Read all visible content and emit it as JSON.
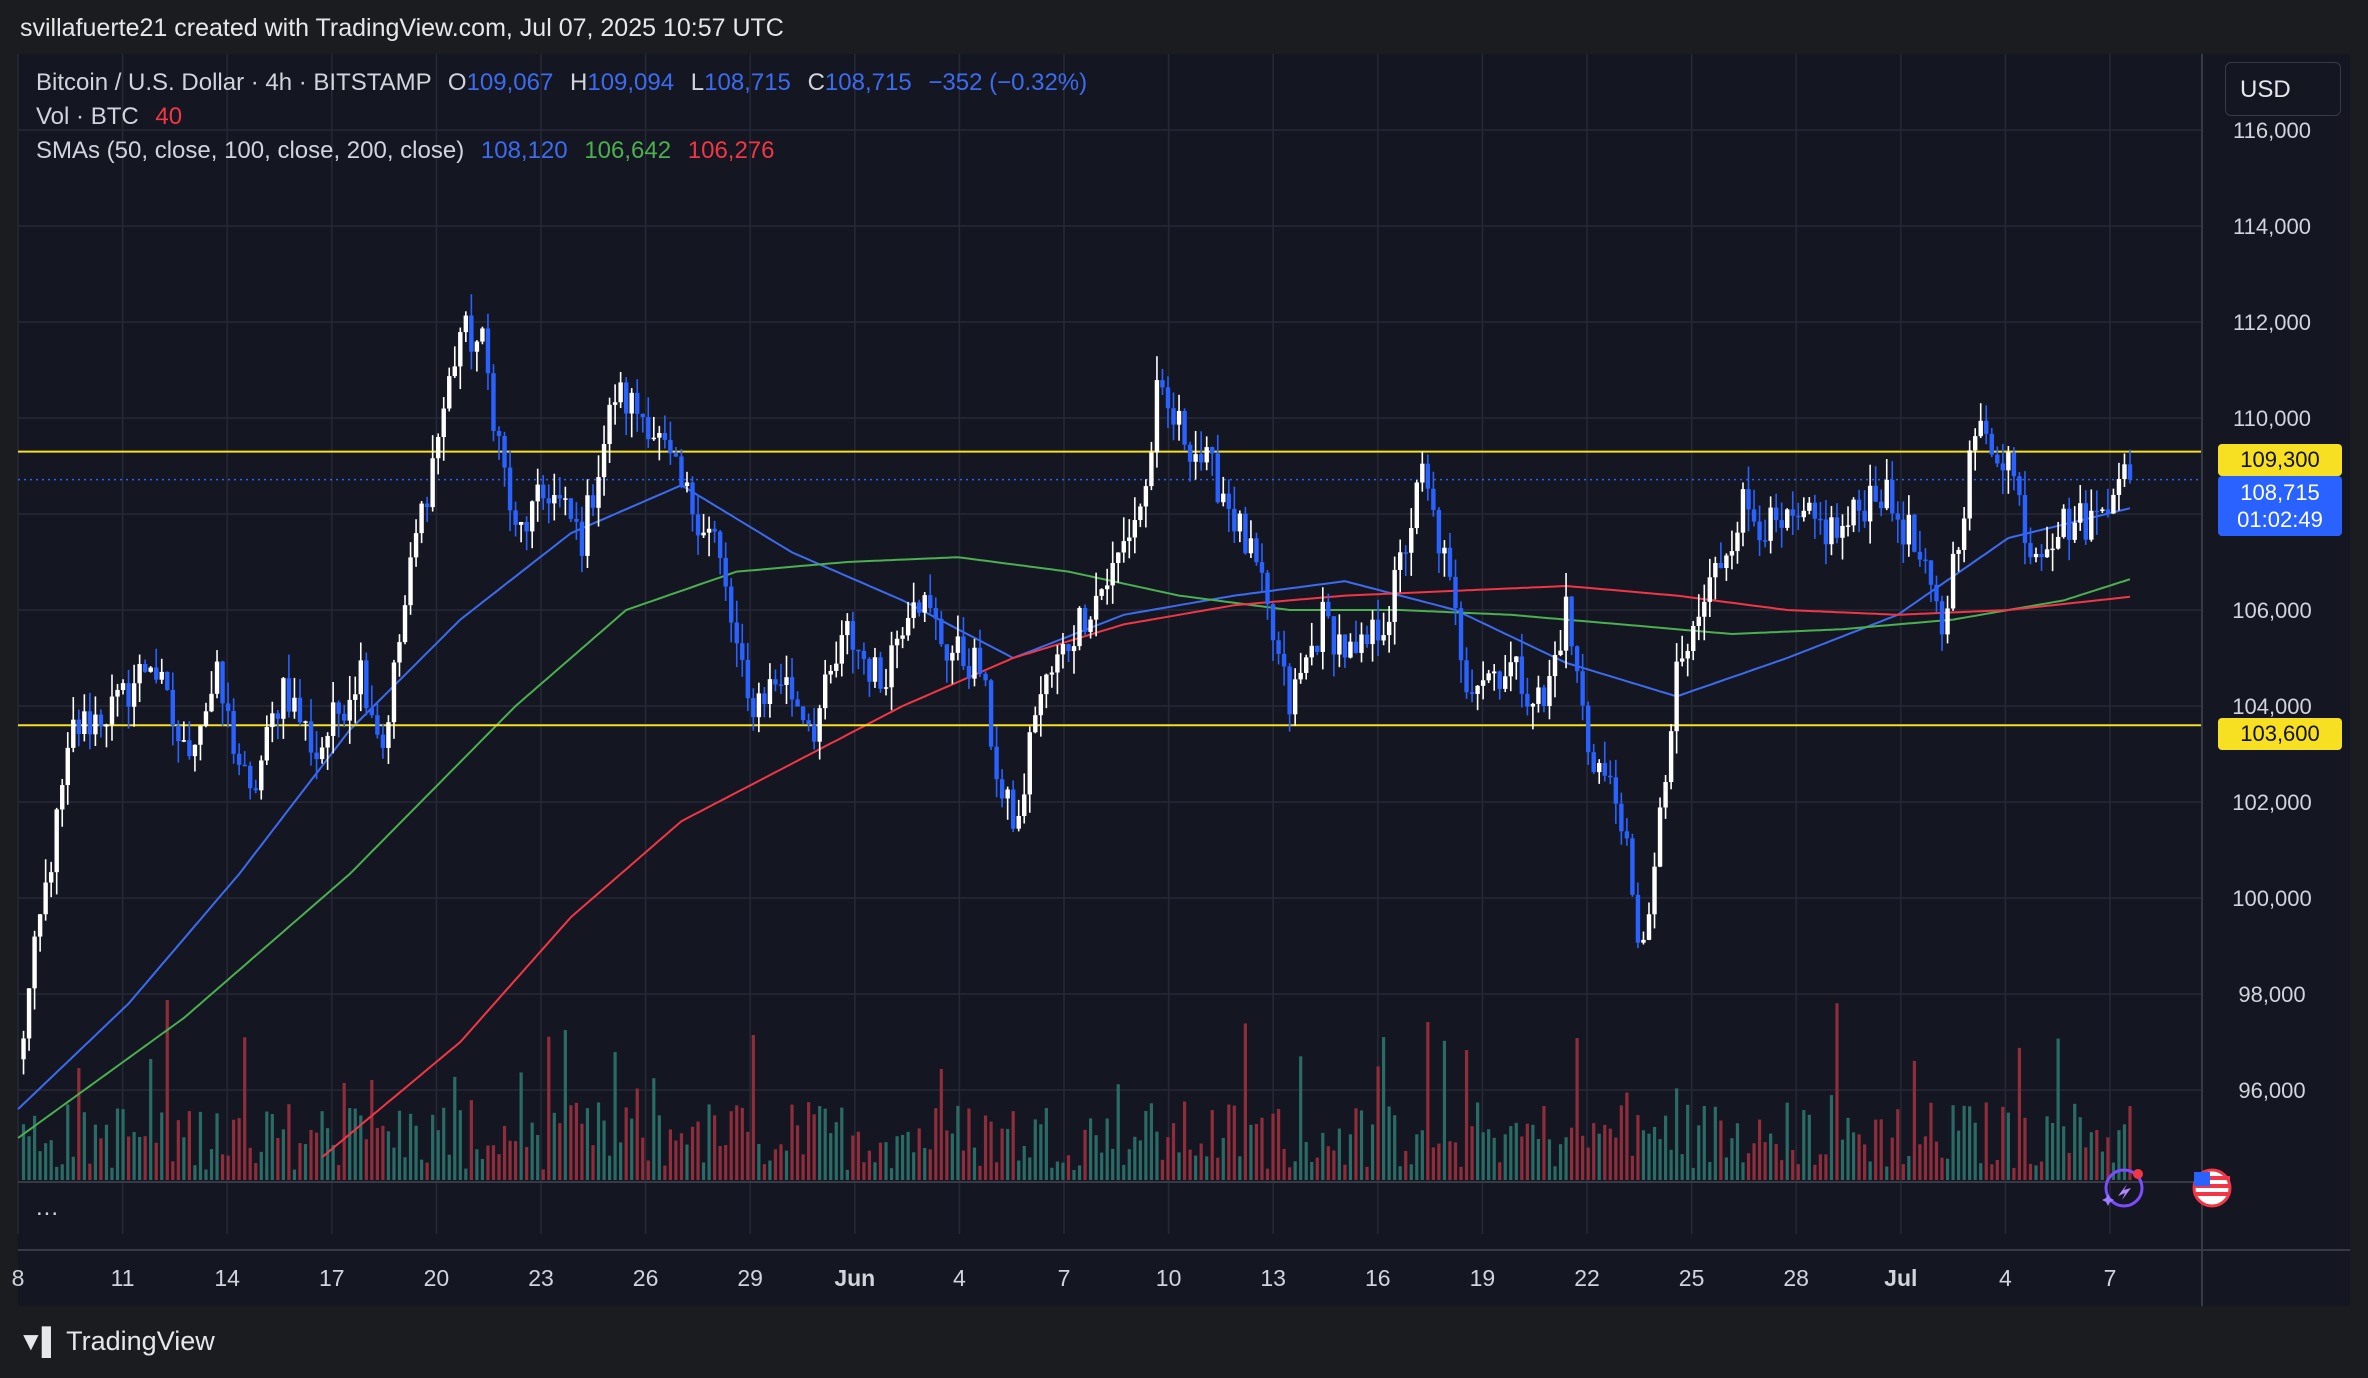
{
  "header": {
    "caption": "svillafuerte21 created with TradingView.com, Jul 07, 2025 10:57 UTC"
  },
  "legend": {
    "symbol": "Bitcoin / U.S. Dollar · 4h · BITSTAMP",
    "o_label": "O",
    "o_value": "109,067",
    "h_label": "H",
    "h_value": "109,094",
    "l_label": "L",
    "l_value": "108,715",
    "c_label": "C",
    "c_value": "108,715",
    "change": "−352 (−0.32%)",
    "vol_label": "Vol · BTC",
    "vol_value": "40",
    "sma_label": "SMAs (50, close, 100, close, 200, close)",
    "sma50": "108,120",
    "sma100": "106,642",
    "sma200": "106,276"
  },
  "price_scale": {
    "currency": "USD",
    "tag_resistance": "109,300",
    "tag_support": "103,600",
    "tag_current_price": "108,715",
    "tag_countdown": "01:02:49"
  },
  "more_label": "...",
  "footer": {
    "brand": "TradingView"
  },
  "colors": {
    "up": "#ffffff",
    "down": "#2962ff",
    "sma50": "#3d6bf0",
    "sma100": "#4caf50",
    "sma200": "#f23645",
    "level": "#f7e021",
    "vol_up": "#2a6b66",
    "vol_down": "#8f2d3a",
    "grid": "#262a36",
    "axis_text": "#d1d4dc"
  },
  "chart_data": {
    "type": "candlestick",
    "symbol": "Bitcoin / U.S. Dollar",
    "interval": "4h",
    "exchange": "BITSTAMP",
    "y_ticks": [
      96000,
      98000,
      100000,
      102000,
      104000,
      106000,
      108000,
      110000,
      112000,
      114000,
      116000
    ],
    "ylim": [
      94600,
      117300
    ],
    "x_tick_labels": [
      "8",
      "11",
      "14",
      "17",
      "20",
      "23",
      "26",
      "29",
      "Jun",
      "4",
      "7",
      "10",
      "13",
      "16",
      "19",
      "22",
      "25",
      "28",
      "Jul",
      "4",
      "7"
    ],
    "horizontal_levels": [
      109300,
      103600
    ],
    "last_price": 108715,
    "grid": true,
    "ohlc_path_key_points": [
      [
        0,
        96500
      ],
      [
        4,
        99500
      ],
      [
        10,
        103500
      ],
      [
        18,
        104000
      ],
      [
        24,
        105000
      ],
      [
        30,
        103000
      ],
      [
        36,
        104500
      ],
      [
        42,
        102000
      ],
      [
        48,
        104500
      ],
      [
        54,
        103000
      ],
      [
        62,
        104800
      ],
      [
        66,
        103200
      ],
      [
        72,
        107500
      ],
      [
        80,
        111800
      ],
      [
        84,
        111500
      ],
      [
        90,
        107500
      ],
      [
        96,
        108500
      ],
      [
        102,
        107500
      ],
      [
        108,
        110500
      ],
      [
        114,
        110000
      ],
      [
        120,
        108500
      ],
      [
        126,
        107500
      ],
      [
        132,
        104000
      ],
      [
        138,
        104600
      ],
      [
        144,
        103600
      ],
      [
        150,
        105500
      ],
      [
        156,
        104500
      ],
      [
        162,
        106500
      ],
      [
        168,
        105200
      ],
      [
        174,
        104800
      ],
      [
        178,
        102000
      ],
      [
        181,
        101500
      ],
      [
        184,
        104000
      ],
      [
        192,
        105800
      ],
      [
        198,
        106800
      ],
      [
        204,
        108500
      ],
      [
        206,
        110400
      ],
      [
        212,
        109500
      ],
      [
        218,
        108500
      ],
      [
        224,
        106800
      ],
      [
        230,
        104000
      ],
      [
        236,
        105800
      ],
      [
        242,
        104900
      ],
      [
        248,
        106000
      ],
      [
        254,
        108800
      ],
      [
        258,
        107000
      ],
      [
        262,
        104600
      ],
      [
        270,
        104800
      ],
      [
        276,
        104000
      ],
      [
        280,
        106000
      ],
      [
        284,
        103200
      ],
      [
        290,
        101800
      ],
      [
        293,
        98800
      ],
      [
        296,
        100500
      ],
      [
        300,
        104500
      ],
      [
        306,
        106500
      ],
      [
        312,
        108200
      ],
      [
        318,
        107600
      ],
      [
        324,
        107800
      ],
      [
        330,
        107600
      ],
      [
        336,
        108600
      ],
      [
        342,
        107600
      ],
      [
        348,
        105600
      ],
      [
        354,
        109700
      ],
      [
        360,
        109200
      ],
      [
        364,
        107300
      ],
      [
        370,
        107800
      ],
      [
        376,
        107900
      ],
      [
        380,
        109000
      ],
      [
        382,
        108715
      ]
    ],
    "sma_key_points": {
      "sma50": [
        [
          0,
          95600
        ],
        [
          20,
          97800
        ],
        [
          40,
          100500
        ],
        [
          60,
          103500
        ],
        [
          80,
          105800
        ],
        [
          100,
          107600
        ],
        [
          120,
          108600
        ],
        [
          140,
          107200
        ],
        [
          160,
          106200
        ],
        [
          180,
          105000
        ],
        [
          200,
          105900
        ],
        [
          220,
          106300
        ],
        [
          240,
          106600
        ],
        [
          260,
          106000
        ],
        [
          280,
          104900
        ],
        [
          300,
          104200
        ],
        [
          320,
          105000
        ],
        [
          340,
          105900
        ],
        [
          360,
          107500
        ],
        [
          382,
          108120
        ]
      ],
      "sma100": [
        [
          0,
          95000
        ],
        [
          30,
          97500
        ],
        [
          60,
          100500
        ],
        [
          90,
          104000
        ],
        [
          110,
          106000
        ],
        [
          130,
          106800
        ],
        [
          150,
          107000
        ],
        [
          170,
          107100
        ],
        [
          190,
          106800
        ],
        [
          210,
          106300
        ],
        [
          230,
          106000
        ],
        [
          250,
          106000
        ],
        [
          270,
          105900
        ],
        [
          290,
          105700
        ],
        [
          310,
          105500
        ],
        [
          330,
          105600
        ],
        [
          350,
          105800
        ],
        [
          370,
          106200
        ],
        [
          382,
          106642
        ]
      ],
      "sma200": [
        [
          55,
          94600
        ],
        [
          80,
          97000
        ],
        [
          100,
          99600
        ],
        [
          120,
          101600
        ],
        [
          140,
          102800
        ],
        [
          160,
          104000
        ],
        [
          180,
          105000
        ],
        [
          200,
          105700
        ],
        [
          220,
          106100
        ],
        [
          240,
          106300
        ],
        [
          260,
          106400
        ],
        [
          280,
          106500
        ],
        [
          300,
          106300
        ],
        [
          320,
          106000
        ],
        [
          340,
          105900
        ],
        [
          360,
          106000
        ],
        [
          382,
          106276
        ]
      ]
    }
  }
}
